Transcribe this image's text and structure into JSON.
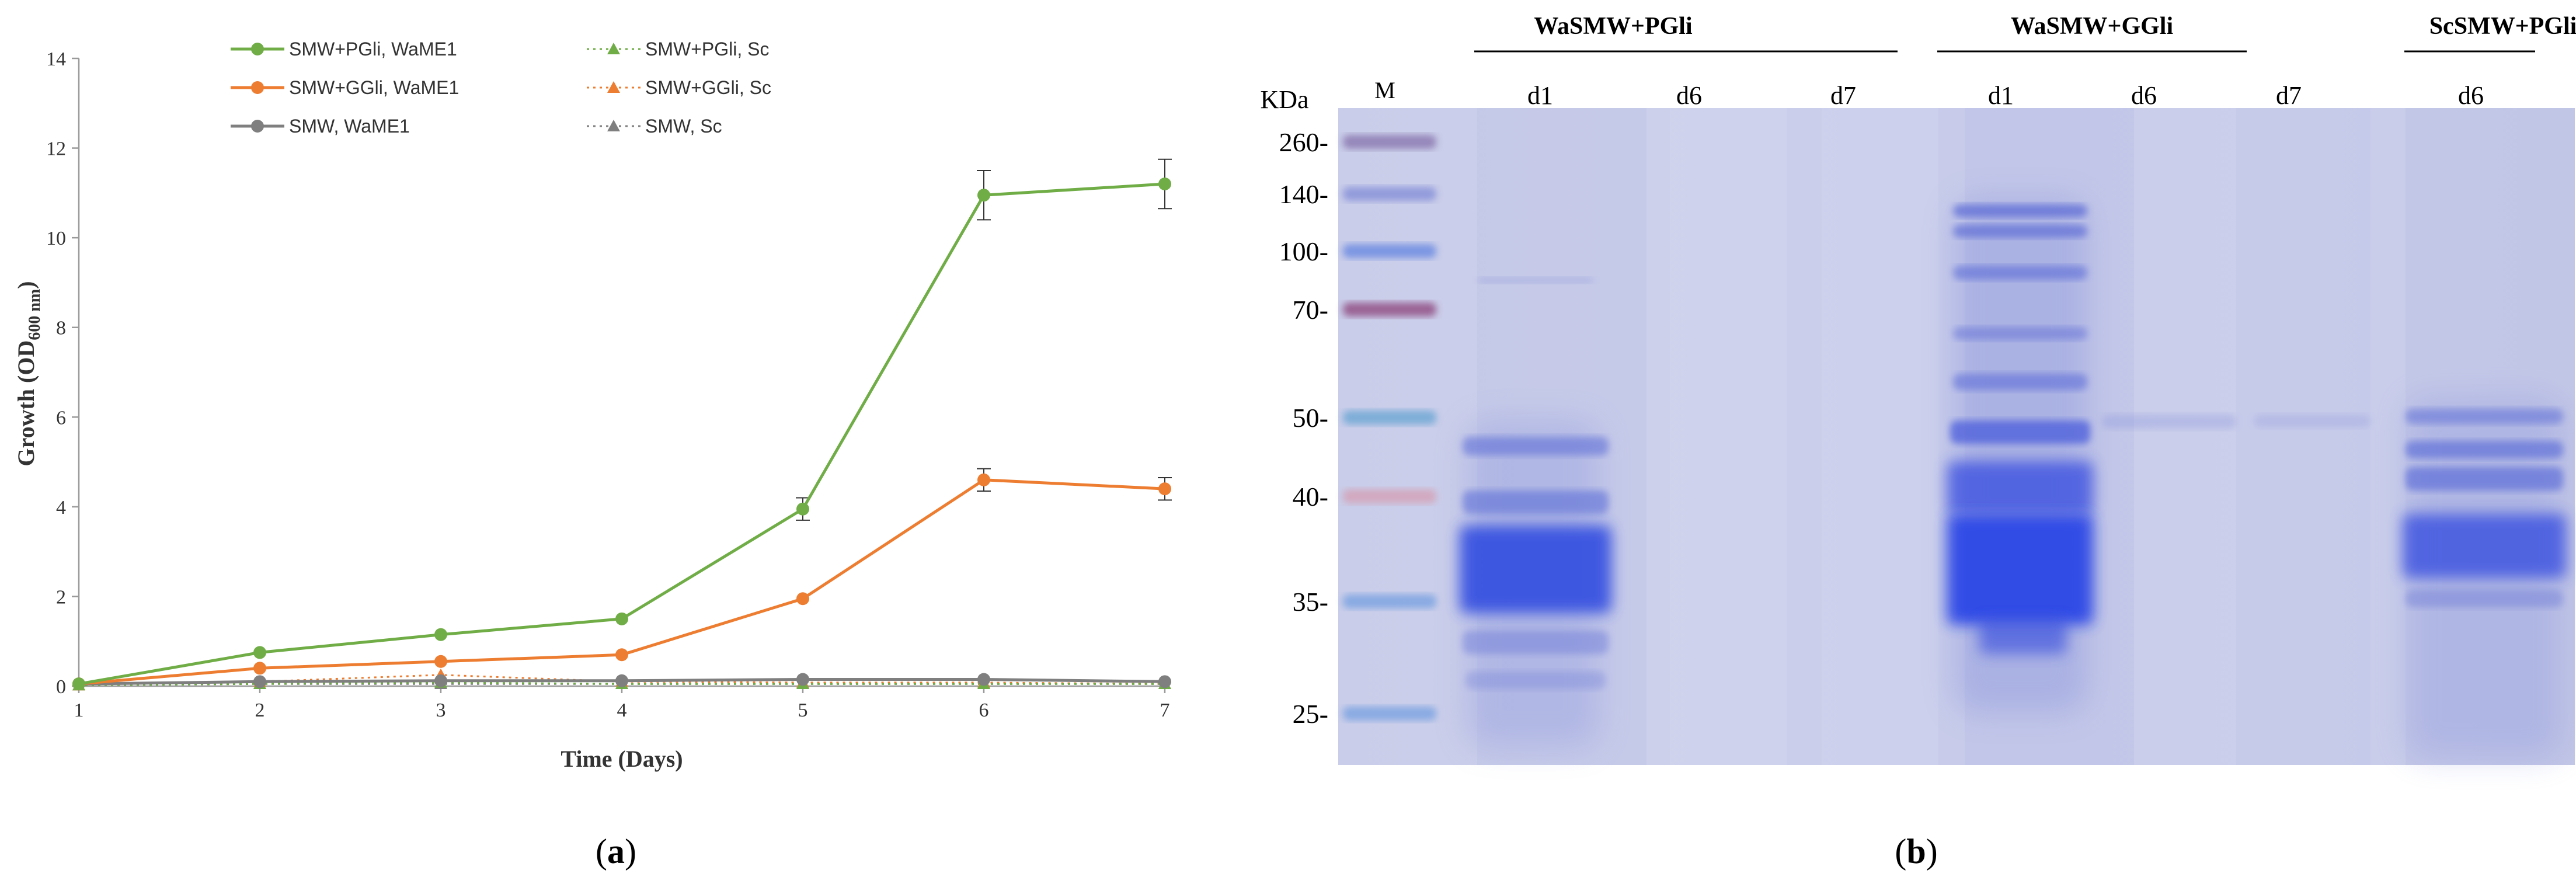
{
  "panels": {
    "a": {
      "caption_open": "(",
      "caption_letter": "a",
      "caption_close": ")"
    },
    "b": {
      "caption_open": "(",
      "caption_letter": "b",
      "caption_close": ")"
    }
  },
  "chart_data": {
    "type": "line",
    "title": "",
    "xlabel": "Time (Days)",
    "ylabel_main": "Growth (OD",
    "ylabel_sub": "600 nm",
    "ylabel_close": ")",
    "x": [
      1,
      2,
      3,
      4,
      5,
      6,
      7
    ],
    "xlim": [
      1,
      7
    ],
    "ylim": [
      0,
      14
    ],
    "yticks": [
      0,
      2,
      4,
      6,
      8,
      10,
      12,
      14
    ],
    "grid": false,
    "legend_position": "top",
    "series": [
      {
        "name": "SMW+PGli, WaME1",
        "color": "#70ad47",
        "marker": "circle",
        "line": "solid",
        "values": [
          0.05,
          0.75,
          1.15,
          1.5,
          3.95,
          10.95,
          11.2
        ],
        "errors": [
          0,
          0,
          0,
          0,
          0.25,
          0.55,
          0.55
        ]
      },
      {
        "name": "SMW+GGli, WaME1",
        "color": "#ed7d31",
        "marker": "circle",
        "line": "solid",
        "values": [
          0.05,
          0.4,
          0.55,
          0.7,
          1.95,
          4.6,
          4.4
        ],
        "errors": [
          0,
          0,
          0,
          0,
          0,
          0.25,
          0.25
        ]
      },
      {
        "name": "SMW, WaME1",
        "color": "#7f7f7f",
        "marker": "circle",
        "line": "solid",
        "values": [
          0.05,
          0.1,
          0.12,
          0.12,
          0.15,
          0.15,
          0.1
        ],
        "errors": [
          0,
          0,
          0,
          0,
          0,
          0,
          0
        ]
      },
      {
        "name": "SMW+PGli, Sc",
        "color": "#70ad47",
        "marker": "triangle",
        "line": "dotted",
        "values": [
          0.02,
          0.05,
          0.08,
          0.05,
          0.05,
          0.05,
          0.05
        ],
        "errors": [
          0,
          0,
          0,
          0,
          0,
          0,
          0
        ]
      },
      {
        "name": "SMW+GGli, Sc",
        "color": "#ed7d31",
        "marker": "triangle",
        "line": "dotted",
        "values": [
          0.02,
          0.1,
          0.25,
          0.1,
          0.08,
          0.08,
          0.05
        ],
        "errors": [
          0,
          0,
          0,
          0,
          0,
          0,
          0
        ]
      },
      {
        "name": "SMW, Sc",
        "color": "#7f7f7f",
        "marker": "triangle",
        "line": "dotted",
        "values": [
          0.02,
          0.05,
          0.05,
          0.05,
          0.05,
          0.05,
          0.05
        ],
        "errors": [
          0,
          0,
          0,
          0,
          0,
          0,
          0
        ]
      }
    ]
  },
  "gel": {
    "marker_lane_label": "M",
    "unit_label": "KDa",
    "ladder": [
      {
        "label": "260-",
        "kda": 260
      },
      {
        "label": "140-",
        "kda": 140
      },
      {
        "label": "100-",
        "kda": 100
      },
      {
        "label": "70-",
        "kda": 70
      },
      {
        "label": "50-",
        "kda": 50
      },
      {
        "label": "40-",
        "kda": 40
      },
      {
        "label": "35-",
        "kda": 35
      },
      {
        "label": "25-",
        "kda": 25
      }
    ],
    "groups": [
      {
        "label": "WaSMW+PGli",
        "lanes": [
          "d1",
          "d6",
          "d7"
        ]
      },
      {
        "label": "WaSMW+GGli",
        "lanes": [
          "d1",
          "d6",
          "d7"
        ]
      },
      {
        "label": "ScSMW+PGli",
        "lanes": [
          "d6"
        ]
      }
    ]
  }
}
